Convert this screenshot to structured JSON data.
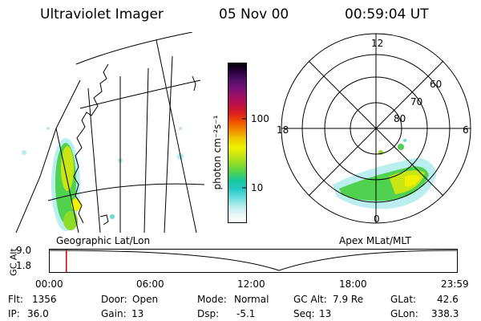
{
  "header": {
    "title": "Ultraviolet Imager",
    "date": "05 Nov 00",
    "time": "00:59:04 UT"
  },
  "geo_panel": {
    "label": "Geographic Lat/Lon"
  },
  "polar_panel": {
    "label": "Apex MLat/MLT",
    "mlt_labels": {
      "top": "12",
      "left": "18",
      "right": "6",
      "bottom": "0"
    },
    "lat_labels": [
      "60",
      "70",
      "80"
    ]
  },
  "colorbar": {
    "unit_label": "photon cm⁻²s⁻¹",
    "tick_100": "100",
    "tick_10": "10",
    "colors": [
      "#ffffff",
      "#e6f6f6",
      "#b4ecec",
      "#64dcdc",
      "#28c8c8",
      "#14c8a0",
      "#50d250",
      "#8cdc28",
      "#c8e614",
      "#f0f000",
      "#f0c800",
      "#f08c00",
      "#f05000",
      "#dc1e1e",
      "#be0f46",
      "#a00f64",
      "#780f78",
      "#500f64",
      "#28003c",
      "#000000"
    ]
  },
  "altitude_plot": {
    "axis_label": "GC Alt",
    "y_top": "9.0",
    "y_bottom": "1.8",
    "x_ticks": [
      "00:00",
      "06:00",
      "12:00",
      "18:00",
      "23:59"
    ],
    "marker_color": "#cc0000",
    "marker_time_hours": 0.98
  },
  "info": {
    "flt_label": "Flt:",
    "flt_value": "1356",
    "ip_label": "IP:",
    "ip_value": "36.0",
    "door_label": "Door:",
    "door_value": "Open",
    "gain_label": "Gain:",
    "gain_value": "13",
    "mode_label": "Mode:",
    "mode_value": "Normal",
    "dsp_label": "Dsp:",
    "dsp_value": "-5.1",
    "gcalt_label": "GC Alt:",
    "gcalt_value": "7.9 Re",
    "seq_label": "Seq:",
    "seq_value": "13",
    "glat_label": "GLat:",
    "glat_value": "42.6",
    "glon_label": "GLon:",
    "glon_value": "338.3"
  }
}
